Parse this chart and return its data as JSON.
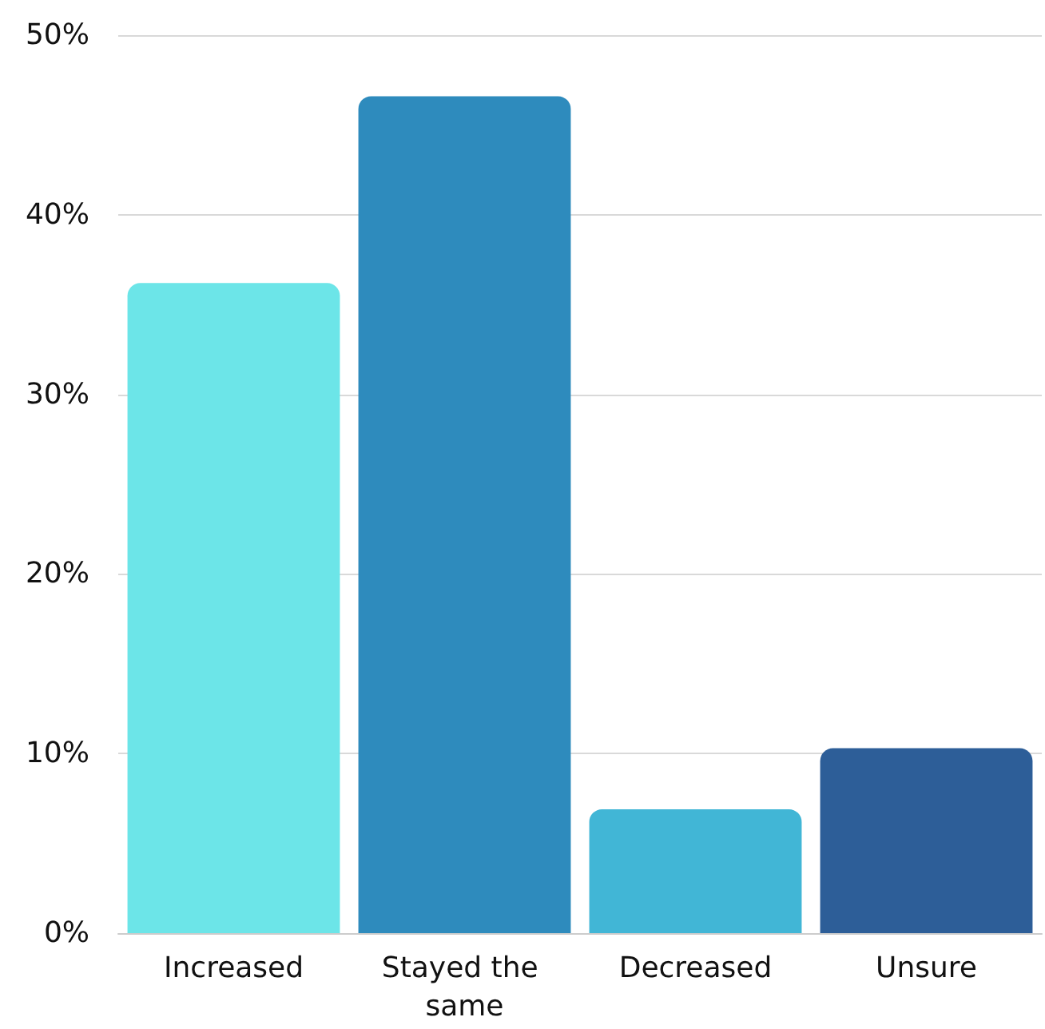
{
  "chart_data": {
    "type": "bar",
    "categories": [
      "Increased",
      "Stayed the same",
      "Decreased",
      "Unsure"
    ],
    "values": [
      36.2,
      46.6,
      6.9,
      10.3
    ],
    "colors": [
      "#6ce5e8",
      "#2e8bbd",
      "#41b6d6",
      "#2d5e98"
    ],
    "ylim": [
      0,
      50
    ],
    "yticks": [
      {
        "value": 0,
        "label": "0%"
      },
      {
        "value": 10,
        "label": "10%"
      },
      {
        "value": 20,
        "label": "20%"
      },
      {
        "value": 30,
        "label": "30%"
      },
      {
        "value": 40,
        "label": "40%"
      },
      {
        "value": 50,
        "label": "50%"
      }
    ],
    "grid": "y"
  }
}
